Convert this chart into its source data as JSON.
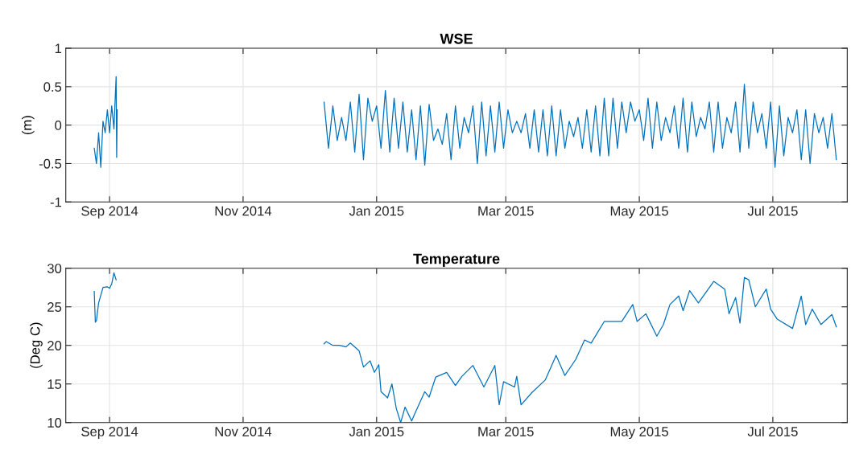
{
  "chart_data": [
    {
      "type": "line",
      "title": "WSE",
      "ylabel": "(m)",
      "grid": true,
      "x": [
        "2014-08-25",
        "2014-08-26",
        "2014-08-27",
        "2014-08-28",
        "2014-08-29",
        "2014-08-30",
        "2014-08-31",
        "2014-09-01",
        "2014-09-02",
        "2014-09-03",
        "2014-09-03T12:00",
        "2014-09-04",
        "2014-09-04T06:00",
        "2014-09-04T12:00",
        "2014-10-20",
        "2014-12-08",
        "2014-12-10",
        "2014-12-12",
        "2014-12-14",
        "2014-12-16",
        "2014-12-18",
        "2014-12-20",
        "2014-12-22",
        "2014-12-24",
        "2014-12-26",
        "2014-12-28",
        "2014-12-30",
        "2015-01-01",
        "2015-01-03",
        "2015-01-05",
        "2015-01-07",
        "2015-01-09",
        "2015-01-11",
        "2015-01-13",
        "2015-01-15",
        "2015-01-17",
        "2015-01-19",
        "2015-01-21",
        "2015-01-23",
        "2015-01-25",
        "2015-01-27",
        "2015-01-29",
        "2015-01-31",
        "2015-02-02",
        "2015-02-04",
        "2015-02-06",
        "2015-02-08",
        "2015-02-10",
        "2015-02-12",
        "2015-02-14",
        "2015-02-16",
        "2015-02-18",
        "2015-02-20",
        "2015-02-22",
        "2015-02-24",
        "2015-02-26",
        "2015-02-28",
        "2015-03-02",
        "2015-03-04",
        "2015-03-06",
        "2015-03-08",
        "2015-03-10",
        "2015-03-12",
        "2015-03-14",
        "2015-03-16",
        "2015-03-18",
        "2015-03-20",
        "2015-03-22",
        "2015-03-24",
        "2015-03-26",
        "2015-03-28",
        "2015-03-30",
        "2015-04-01",
        "2015-04-03",
        "2015-04-05",
        "2015-04-07",
        "2015-04-09",
        "2015-04-11",
        "2015-04-13",
        "2015-04-15",
        "2015-04-17",
        "2015-04-19",
        "2015-04-21",
        "2015-04-23",
        "2015-04-25",
        "2015-04-27",
        "2015-04-29",
        "2015-05-01",
        "2015-05-03",
        "2015-05-05",
        "2015-05-07",
        "2015-05-09",
        "2015-05-11",
        "2015-05-13",
        "2015-05-15",
        "2015-05-17",
        "2015-05-19",
        "2015-05-21",
        "2015-05-23",
        "2015-05-25",
        "2015-05-27",
        "2015-05-29",
        "2015-05-31",
        "2015-06-02",
        "2015-06-04",
        "2015-06-06",
        "2015-06-08",
        "2015-06-10",
        "2015-06-12",
        "2015-06-14",
        "2015-06-16",
        "2015-06-18",
        "2015-06-20",
        "2015-06-22",
        "2015-06-24",
        "2015-06-26",
        "2015-06-28",
        "2015-06-30",
        "2015-07-02",
        "2015-07-04",
        "2015-07-06",
        "2015-07-08",
        "2015-07-10",
        "2015-07-12",
        "2015-07-14",
        "2015-07-16",
        "2015-07-18",
        "2015-07-20",
        "2015-07-22",
        "2015-07-24",
        "2015-07-26",
        "2015-07-28",
        "2015-07-30"
      ],
      "series": [
        {
          "color": "#0072bd",
          "values": [
            -0.3,
            -0.5,
            -0.1,
            -0.55,
            0.05,
            -0.1,
            0.2,
            -0.1,
            0.25,
            -0.05,
            0.3,
            0.63,
            -0.42,
            0.2,
            null,
            0.3,
            -0.3,
            0.25,
            -0.2,
            0.1,
            -0.2,
            0.3,
            -0.35,
            0.4,
            -0.45,
            0.35,
            0.05,
            0.25,
            -0.3,
            0.45,
            -0.35,
            0.35,
            -0.3,
            0.3,
            -0.35,
            0.2,
            -0.45,
            0.25,
            -0.52,
            0.27,
            -0.2,
            -0.05,
            -0.25,
            0.15,
            -0.45,
            0.25,
            -0.3,
            0.1,
            -0.1,
            0.25,
            -0.5,
            0.3,
            -0.4,
            0.25,
            -0.35,
            0.3,
            -0.3,
            0.2,
            -0.1,
            0.05,
            -0.1,
            0.15,
            -0.3,
            0.2,
            -0.35,
            0.2,
            -0.4,
            0.25,
            -0.4,
            0.2,
            -0.3,
            0.05,
            -0.15,
            0.1,
            -0.3,
            0.2,
            -0.35,
            0.25,
            -0.4,
            0.35,
            -0.4,
            0.35,
            -0.3,
            0.3,
            -0.1,
            0.3,
            0.05,
            0.2,
            -0.2,
            0.35,
            -0.3,
            0.3,
            -0.2,
            0.1,
            -0.1,
            0.25,
            -0.3,
            0.35,
            -0.35,
            0.3,
            -0.15,
            0.1,
            -0.05,
            0.3,
            -0.35,
            0.3,
            -0.3,
            0.1,
            -0.1,
            0.3,
            -0.35,
            0.53,
            -0.3,
            0.3,
            -0.1,
            0.15,
            -0.3,
            0.3,
            -0.55,
            0.25,
            -0.4,
            0.1,
            -0.1,
            0.2,
            -0.45,
            0.2,
            -0.5,
            0.15,
            -0.1,
            0.1,
            -0.3,
            0.15,
            -0.45
          ]
        }
      ],
      "xlim": [
        "2014-08-12",
        "2015-08-04"
      ],
      "xticks": [
        {
          "value": "2014-09-01",
          "label": "Sep 2014"
        },
        {
          "value": "2014-11-01",
          "label": "Nov 2014"
        },
        {
          "value": "2015-01-01",
          "label": "Jan 2015"
        },
        {
          "value": "2015-03-01",
          "label": "Mar 2015"
        },
        {
          "value": "2015-05-01",
          "label": "May 2015"
        },
        {
          "value": "2015-07-01",
          "label": "Jul 2015"
        }
      ],
      "ylim": [
        -1,
        1
      ],
      "yticks": [
        -1,
        -0.5,
        0,
        0.5,
        1
      ]
    },
    {
      "type": "line",
      "title": "Temperature",
      "ylabel": "(Deg C)",
      "grid": true,
      "x": [
        "2014-08-25",
        "2014-08-25T12:00",
        "2014-08-26",
        "2014-08-27",
        "2014-08-28",
        "2014-08-29",
        "2014-08-31",
        "2014-09-01",
        "2014-09-02",
        "2014-09-03",
        "2014-09-04",
        "2014-10-20",
        "2014-12-08",
        "2014-12-09",
        "2014-12-12",
        "2014-12-15",
        "2014-12-18",
        "2014-12-20",
        "2014-12-24",
        "2014-12-26",
        "2014-12-29",
        "2014-12-31",
        "2015-01-02",
        "2015-01-03",
        "2015-01-06",
        "2015-01-08",
        "2015-01-10",
        "2015-01-12",
        "2015-01-14",
        "2015-01-17",
        "2015-01-19",
        "2015-01-23",
        "2015-01-25",
        "2015-01-28",
        "2015-02-02",
        "2015-02-06",
        "2015-02-09",
        "2015-02-14",
        "2015-02-19",
        "2015-02-24",
        "2015-02-26",
        "2015-02-28",
        "2015-03-05",
        "2015-03-06",
        "2015-03-08",
        "2015-03-13",
        "2015-03-19",
        "2015-03-24",
        "2015-03-28",
        "2015-04-02",
        "2015-04-06",
        "2015-04-09",
        "2015-04-12",
        "2015-04-15",
        "2015-04-23",
        "2015-04-28",
        "2015-04-30",
        "2015-05-04",
        "2015-05-09",
        "2015-05-12",
        "2015-05-15",
        "2015-05-19",
        "2015-05-21",
        "2015-05-24",
        "2015-05-28",
        "2015-06-04",
        "2015-06-09",
        "2015-06-11",
        "2015-06-14",
        "2015-06-16",
        "2015-06-18",
        "2015-06-20",
        "2015-06-23",
        "2015-06-28",
        "2015-06-30",
        "2015-07-03",
        "2015-07-10",
        "2015-07-14",
        "2015-07-16",
        "2015-07-19",
        "2015-07-23",
        "2015-07-28",
        "2015-07-30"
      ],
      "series": [
        {
          "color": "#0072bd",
          "values": [
            27,
            23,
            23.2,
            25.5,
            26.5,
            27.5,
            27.6,
            27.4,
            28,
            29.4,
            28.5,
            null,
            20.2,
            20.5,
            20,
            20,
            19.8,
            20.3,
            19.3,
            17.2,
            18,
            16.5,
            17.5,
            14,
            13.2,
            15,
            11.8,
            10,
            12,
            10.2,
            11.5,
            14,
            13.3,
            15.9,
            16.5,
            14.8,
            16,
            17.4,
            14.6,
            17.4,
            12.3,
            15.3,
            14.6,
            16,
            12.3,
            13.9,
            15.5,
            18.7,
            16.1,
            18.2,
            20.7,
            20.3,
            21.7,
            23.1,
            23.1,
            25.3,
            23.1,
            24.1,
            21.2,
            22.7,
            25.3,
            26.4,
            24.5,
            27.1,
            25.5,
            28.3,
            27.3,
            24.1,
            26.2,
            22.9,
            28.8,
            28.5,
            25,
            27.3,
            24.7,
            23.4,
            22.2,
            26.4,
            22.7,
            24.7,
            22.7,
            24,
            22.4
          ]
        }
      ],
      "xlim": [
        "2014-08-12",
        "2015-08-04"
      ],
      "xticks": [
        {
          "value": "2014-09-01",
          "label": "Sep 2014"
        },
        {
          "value": "2014-11-01",
          "label": "Nov 2014"
        },
        {
          "value": "2015-01-01",
          "label": "Jan 2015"
        },
        {
          "value": "2015-03-01",
          "label": "Mar 2015"
        },
        {
          "value": "2015-05-01",
          "label": "May 2015"
        },
        {
          "value": "2015-07-01",
          "label": "Jul 2015"
        }
      ],
      "ylim": [
        10,
        30
      ],
      "yticks": [
        10,
        15,
        20,
        25,
        30
      ]
    }
  ]
}
